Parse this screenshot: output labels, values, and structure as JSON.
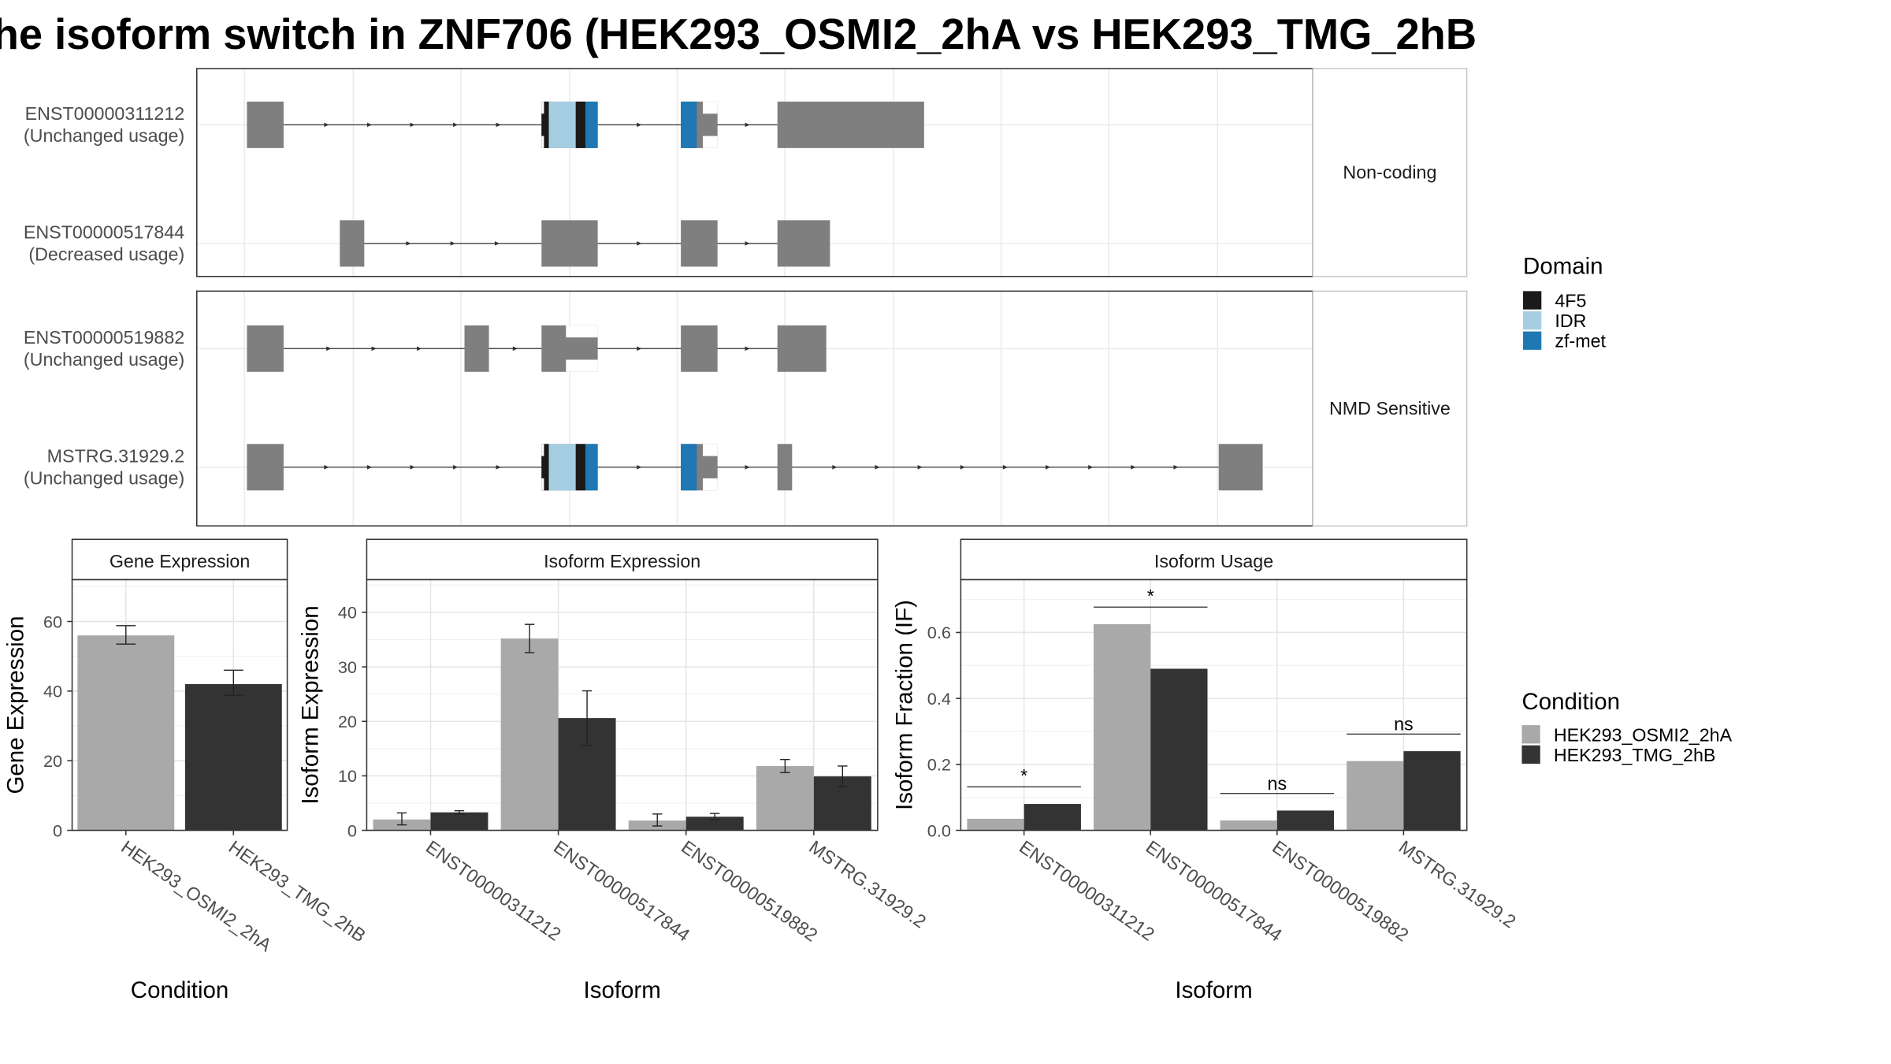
{
  "title": "he isoform switch in ZNF706 (HEK293_OSMI2_2hA vs HEK293_TMG_2hB",
  "colors": {
    "exon": "#7f7f7f",
    "domains": {
      "4F5": "#1a1a1a",
      "IDR": "#a6cee3",
      "zf-met": "#1f78b4"
    },
    "conditions": {
      "HEK293_OSMI2_2hA": "#a9a9a9",
      "HEK293_TMG_2hB": "#333333"
    }
  },
  "transcript_panels": [
    {
      "label": "Non-coding",
      "transcripts": [
        {
          "id": "ENST00000311212",
          "usage": "(Unchanged usage)"
        },
        {
          "id": "ENST00000517844",
          "usage": "(Decreased usage)"
        }
      ]
    },
    {
      "label": "NMD Sensitive",
      "transcripts": [
        {
          "id": "ENST00000519882",
          "usage": "(Unchanged usage)"
        },
        {
          "id": "MSTRG.31929.2",
          "usage": "(Unchanged usage)"
        }
      ]
    }
  ],
  "domain_legend": {
    "title": "Domain",
    "items": [
      "4F5",
      "IDR",
      "zf-met"
    ]
  },
  "condition_legend": {
    "title": "Condition",
    "items": [
      "HEK293_OSMI2_2hA",
      "HEK293_TMG_2hB"
    ]
  },
  "chart_data": [
    {
      "type": "bar",
      "title": "Gene Expression",
      "xlabel": "Condition",
      "ylabel": "Gene Expression",
      "ylim": [
        0,
        72
      ],
      "yticks": [
        0,
        20,
        40,
        60
      ],
      "categories": [
        "HEK293_OSMI2_2hA",
        "HEK293_TMG_2hB"
      ],
      "values": [
        56,
        42
      ],
      "errors": [
        [
          53.5,
          58.8
        ],
        [
          38.8,
          46
        ]
      ]
    },
    {
      "type": "bar",
      "title": "Isoform Expression",
      "xlabel": "Isoform",
      "ylabel": "Isoform Expression",
      "ylim": [
        0,
        46
      ],
      "yticks": [
        0,
        10,
        20,
        30,
        40
      ],
      "categories": [
        "ENST00000311212",
        "ENST00000517844",
        "ENST00000519882",
        "MSTRG.31929.2"
      ],
      "series": [
        {
          "name": "HEK293_OSMI2_2hA",
          "values": [
            2,
            35.2,
            1.8,
            11.8
          ],
          "errors": [
            [
              1,
              3.2
            ],
            [
              32.6,
              37.8
            ],
            [
              0.8,
              3
            ],
            [
              10.6,
              13
            ]
          ]
        },
        {
          "name": "HEK293_TMG_2hB",
          "values": [
            3.3,
            20.6,
            2.5,
            9.9
          ],
          "errors": [
            [
              3,
              3.6
            ],
            [
              15.6,
              25.6
            ],
            [
              2,
              3.1
            ],
            [
              8,
              11.8
            ]
          ]
        }
      ]
    },
    {
      "type": "bar",
      "title": "Isoform Usage",
      "xlabel": "Isoform",
      "ylabel": "Isoform Fraction (IF)",
      "ylim": [
        0,
        0.76
      ],
      "yticks": [
        "0.0",
        "0.2",
        "0.4",
        "0.6"
      ],
      "categories": [
        "ENST00000311212",
        "ENST00000517844",
        "ENST00000519882",
        "MSTRG.31929.2"
      ],
      "series": [
        {
          "name": "HEK293_OSMI2_2hA",
          "values": [
            0.035,
            0.625,
            0.03,
            0.21
          ]
        },
        {
          "name": "HEK293_TMG_2hB",
          "values": [
            0.08,
            0.49,
            0.06,
            0.24
          ]
        }
      ],
      "significance": [
        "*",
        "*",
        "ns",
        "ns"
      ]
    }
  ]
}
